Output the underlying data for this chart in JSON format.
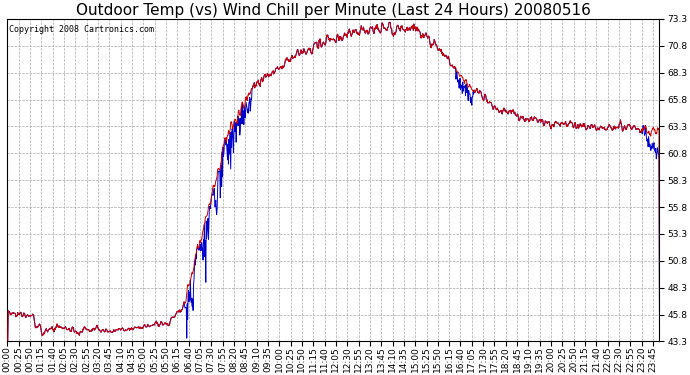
{
  "title": "Outdoor Temp (vs) Wind Chill per Minute (Last 24 Hours) 20080516",
  "copyright": "Copyright 2008 Cartronics.com",
  "ylim": [
    43.3,
    73.3
  ],
  "yticks": [
    43.3,
    45.8,
    48.3,
    50.8,
    53.3,
    55.8,
    58.3,
    60.8,
    63.3,
    65.8,
    68.3,
    70.8,
    73.3
  ],
  "background_color": "#ffffff",
  "plot_bg_color": "#ffffff",
  "grid_color": "#aaaaaa",
  "line_color_temp": "#cc0000",
  "line_color_wind": "#0000cc",
  "title_fontsize": 11,
  "tick_fontsize": 6.5,
  "xlabel_rotation": 90
}
